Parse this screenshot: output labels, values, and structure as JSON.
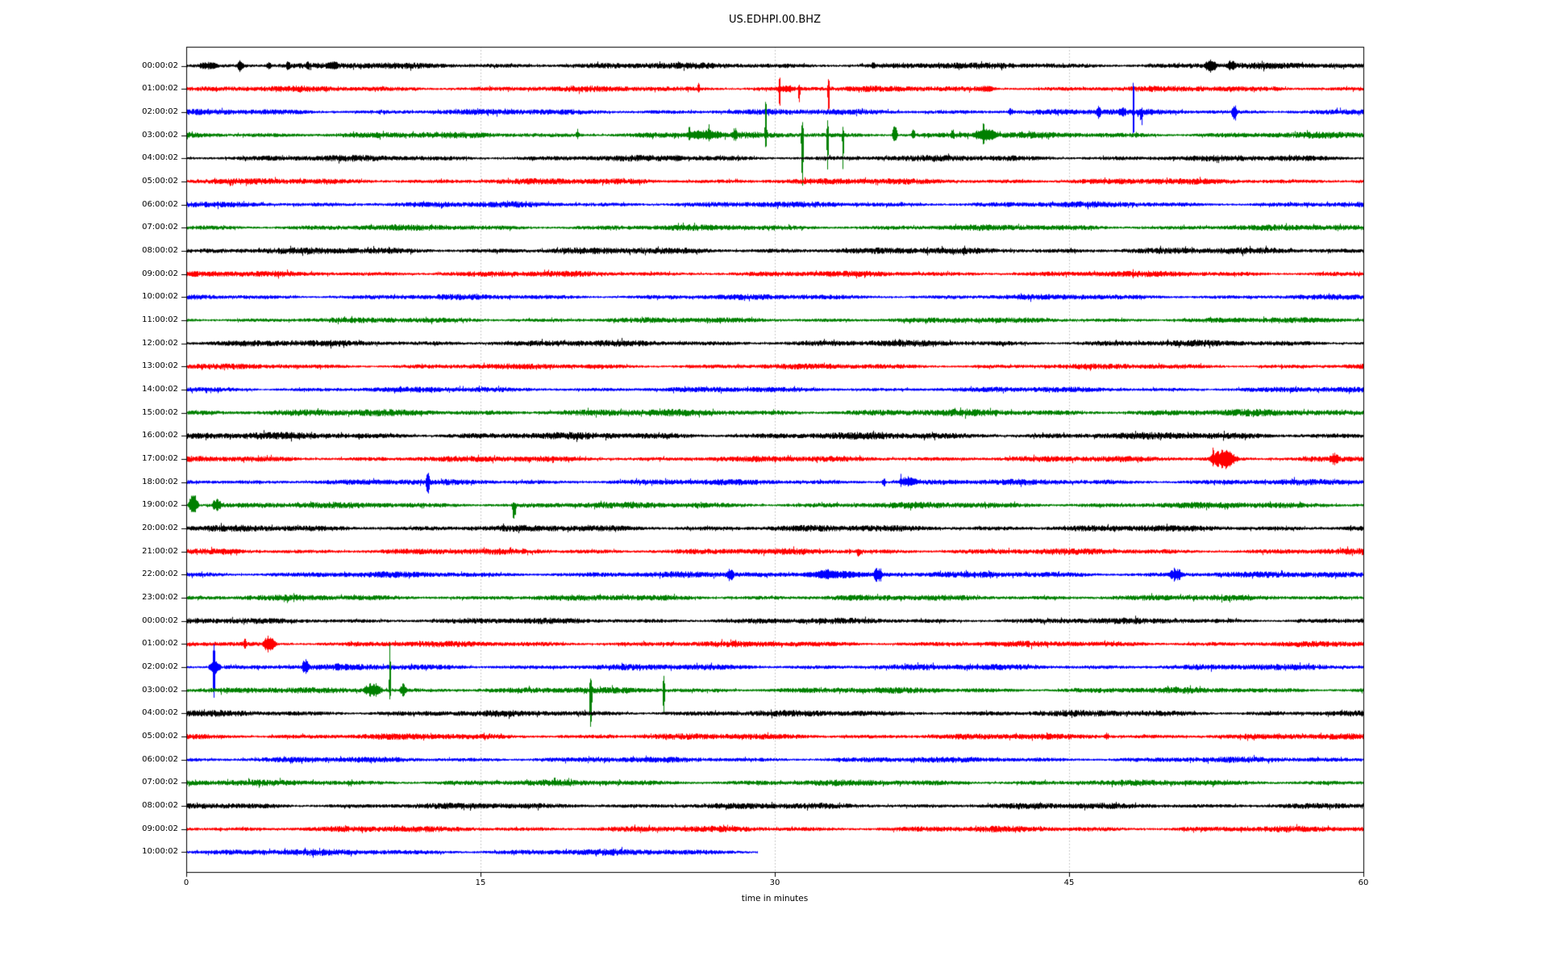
{
  "window": {
    "title": "US.EDHPI.00.BHZ"
  },
  "chart_data": {
    "type": "line",
    "subtype": "helicorder-dayplot",
    "title": "US.EDHPI.00.BHZ",
    "xlabel": "time in minutes",
    "x_ticks": [
      0,
      15,
      30,
      45,
      60
    ],
    "x_range_minutes": [
      0,
      60
    ],
    "grid_x_minutes": [
      15,
      30,
      45
    ],
    "grid_on": true,
    "legend": "none",
    "background_color": "#ffffff",
    "grid_color": "#b0b0b0",
    "axis_color": "#000000",
    "color_cycle": [
      "#000000",
      "#ff0000",
      "#0000ff",
      "#008000"
    ],
    "rows": [
      {
        "label": "00:00:02",
        "amp": 3.4,
        "events": [
          {
            "t": 0.3,
            "dur": 1.6,
            "up": 5,
            "down": 5
          },
          {
            "t": 2.5,
            "dur": 0.5,
            "up": 7,
            "down": 8
          },
          {
            "t": 4.0,
            "dur": 0.4,
            "up": 6,
            "down": 6
          },
          {
            "t": 5.0,
            "dur": 0.35,
            "up": 6,
            "down": 6
          },
          {
            "t": 6.0,
            "dur": 0.35,
            "up": 6,
            "down": 5
          },
          {
            "t": 7.0,
            "dur": 0.9,
            "up": 7,
            "down": 6
          },
          {
            "t": 34.8,
            "dur": 0.4,
            "up": 5,
            "down": 4
          },
          {
            "t": 51.8,
            "dur": 0.8,
            "up": 9,
            "down": 10
          },
          {
            "t": 52.9,
            "dur": 0.7,
            "up": 8,
            "down": 7
          }
        ]
      },
      {
        "label": "01:00:02",
        "amp": 3.2,
        "events": [
          {
            "t": 26.0,
            "dur": 0.2,
            "up": 8,
            "down": 5
          },
          {
            "t": 29.9,
            "dur": 1.4,
            "up": 5,
            "down": 5
          },
          {
            "t": 30.15,
            "dur": 0.15,
            "up": 16,
            "down": 24
          },
          {
            "t": 31.15,
            "dur": 0.15,
            "up": 6,
            "down": 19
          },
          {
            "t": 32.65,
            "dur": 0.15,
            "up": 14,
            "down": 34
          },
          {
            "t": 40.0,
            "dur": 1.5,
            "up": 4,
            "down": 4
          }
        ]
      },
      {
        "label": "02:00:02",
        "amp": 3.2,
        "events": [
          {
            "t": 41.8,
            "dur": 0.4,
            "up": 5,
            "down": 4
          },
          {
            "t": 46.3,
            "dur": 0.4,
            "up": 8,
            "down": 9
          },
          {
            "t": 47.4,
            "dur": 0.6,
            "up": 7,
            "down": 7
          },
          {
            "t": 48.2,
            "dur": 0.13,
            "up": 42,
            "down": 33
          },
          {
            "t": 48.55,
            "dur": 0.25,
            "up": 6,
            "down": 18
          },
          {
            "t": 53.2,
            "dur": 0.4,
            "up": 10,
            "down": 13
          }
        ]
      },
      {
        "label": "03:00:02",
        "amp": 3.4,
        "events": [
          {
            "t": 19.8,
            "dur": 0.25,
            "up": 8,
            "down": 5
          },
          {
            "t": 24.8,
            "dur": 3.2,
            "up": 7,
            "down": 6
          },
          {
            "t": 25.55,
            "dur": 0.15,
            "up": 13,
            "down": 8
          },
          {
            "t": 26.55,
            "dur": 0.15,
            "up": 14,
            "down": 8
          },
          {
            "t": 27.8,
            "dur": 0.3,
            "up": 10,
            "down": 8
          },
          {
            "t": 29.45,
            "dur": 0.15,
            "up": 50,
            "down": 18
          },
          {
            "t": 31.3,
            "dur": 0.18,
            "up": 17,
            "down": 66
          },
          {
            "t": 32.6,
            "dur": 0.15,
            "up": 19,
            "down": 44
          },
          {
            "t": 33.4,
            "dur": 0.12,
            "up": 11,
            "down": 45
          },
          {
            "t": 35.9,
            "dur": 0.4,
            "up": 12,
            "down": 8
          },
          {
            "t": 36.9,
            "dur": 0.3,
            "up": 10,
            "down": 6
          },
          {
            "t": 38.9,
            "dur": 0.3,
            "up": 8,
            "down": 5
          },
          {
            "t": 39.8,
            "dur": 1.8,
            "up": 9,
            "down": 8
          },
          {
            "t": 40.55,
            "dur": 0.15,
            "up": 18,
            "down": 14
          },
          {
            "t": 42.4,
            "dur": 0.3,
            "up": 6,
            "down": 4
          }
        ]
      },
      {
        "label": "04:00:02",
        "amp": 3.3,
        "events": [
          {
            "t": 24.5,
            "dur": 1.0,
            "up": 4,
            "down": 4
          }
        ]
      },
      {
        "label": "05:00:02",
        "amp": 3.3,
        "events": []
      },
      {
        "label": "06:00:02",
        "amp": 3.2,
        "events": []
      },
      {
        "label": "07:00:02",
        "amp": 3.2,
        "events": []
      },
      {
        "label": "08:00:02",
        "amp": 3.6,
        "events": []
      },
      {
        "label": "09:00:02",
        "amp": 3.2,
        "events": []
      },
      {
        "label": "10:00:02",
        "amp": 3.0,
        "events": []
      },
      {
        "label": "11:00:02",
        "amp": 3.0,
        "events": []
      },
      {
        "label": "12:00:02",
        "amp": 3.4,
        "events": []
      },
      {
        "label": "13:00:02",
        "amp": 3.0,
        "events": []
      },
      {
        "label": "14:00:02",
        "amp": 3.0,
        "events": []
      },
      {
        "label": "15:00:02",
        "amp": 3.7,
        "events": []
      },
      {
        "label": "16:00:02",
        "amp": 3.8,
        "events": []
      },
      {
        "label": "17:00:02",
        "amp": 3.3,
        "events": [
          {
            "t": 51.9,
            "dur": 1.9,
            "up": 12,
            "down": 12
          },
          {
            "t": 52.25,
            "dur": 0.15,
            "up": 17,
            "down": 11
          },
          {
            "t": 52.9,
            "dur": 0.12,
            "up": 12,
            "down": 15
          },
          {
            "t": 58.1,
            "dur": 0.8,
            "up": 8,
            "down": 8
          }
        ]
      },
      {
        "label": "18:00:02",
        "amp": 3.2,
        "events": [
          {
            "t": 12.15,
            "dur": 0.3,
            "up": 13,
            "down": 16
          },
          {
            "t": 35.4,
            "dur": 0.3,
            "up": 5,
            "down": 6
          },
          {
            "t": 36.1,
            "dur": 1.4,
            "up": 8,
            "down": 6
          },
          {
            "t": 36.35,
            "dur": 0.12,
            "up": 12,
            "down": 7
          }
        ]
      },
      {
        "label": "19:00:02",
        "amp": 3.4,
        "events": [
          {
            "t": 0.0,
            "dur": 0.7,
            "up": 14,
            "down": 10
          },
          {
            "t": 1.2,
            "dur": 0.7,
            "up": 9,
            "down": 8
          },
          {
            "t": 16.55,
            "dur": 0.3,
            "up": 5,
            "down": 24
          }
        ]
      },
      {
        "label": "20:00:02",
        "amp": 3.5,
        "events": []
      },
      {
        "label": "21:00:02",
        "amp": 3.3,
        "events": [
          {
            "t": 34.1,
            "dur": 0.35,
            "up": 4,
            "down": 8
          }
        ]
      },
      {
        "label": "22:00:02",
        "amp": 3.3,
        "events": [
          {
            "t": 27.4,
            "dur": 0.6,
            "up": 8,
            "down": 9
          },
          {
            "t": 30.2,
            "dur": 5.6,
            "up": 5,
            "down": 5
          },
          {
            "t": 31.8,
            "dur": 1.6,
            "up": 7,
            "down": 6
          },
          {
            "t": 34.9,
            "dur": 0.7,
            "up": 10,
            "down": 11
          },
          {
            "t": 49.9,
            "dur": 1.1,
            "up": 8,
            "down": 8
          },
          {
            "t": 50.3,
            "dur": 0.12,
            "up": 10,
            "down": 10
          }
        ]
      },
      {
        "label": "23:00:02",
        "amp": 3.2,
        "events": []
      },
      {
        "label": "00:00:02",
        "amp": 3.2,
        "events": []
      },
      {
        "label": "01:00:02",
        "amp": 3.2,
        "events": [
          {
            "t": 2.85,
            "dur": 0.25,
            "up": 7,
            "down": 6
          },
          {
            "t": 3.75,
            "dur": 0.95,
            "up": 11,
            "down": 11
          }
        ]
      },
      {
        "label": "02:00:02",
        "amp": 3.3,
        "events": [
          {
            "t": 1.0,
            "dur": 0.9,
            "up": 8,
            "down": 8
          },
          {
            "t": 1.3,
            "dur": 0.2,
            "up": 30,
            "down": 40
          },
          {
            "t": 5.8,
            "dur": 0.55,
            "up": 12,
            "down": 10
          },
          {
            "t": 7.5,
            "dur": 0.4,
            "up": 7,
            "down": 6
          },
          {
            "t": 8.5,
            "dur": 0.4,
            "up": 4,
            "down": 4
          }
        ]
      },
      {
        "label": "03:00:02",
        "amp": 3.3,
        "events": [
          {
            "t": 8.85,
            "dur": 1.3,
            "up": 10,
            "down": 9
          },
          {
            "t": 10.3,
            "dur": 0.13,
            "up": 62,
            "down": 12
          },
          {
            "t": 10.75,
            "dur": 0.6,
            "up": 9,
            "down": 8
          },
          {
            "t": 20.5,
            "dur": 0.2,
            "up": 16,
            "down": 50
          },
          {
            "t": 24.25,
            "dur": 0.15,
            "up": 19,
            "down": 31
          }
        ]
      },
      {
        "label": "04:00:02",
        "amp": 3.4,
        "events": []
      },
      {
        "label": "05:00:02",
        "amp": 3.3,
        "events": [
          {
            "t": 46.7,
            "dur": 0.4,
            "up": 5,
            "down": 4
          }
        ]
      },
      {
        "label": "06:00:02",
        "amp": 3.1,
        "events": []
      },
      {
        "label": "07:00:02",
        "amp": 3.3,
        "events": []
      },
      {
        "label": "08:00:02",
        "amp": 3.3,
        "events": []
      },
      {
        "label": "09:00:02",
        "amp": 3.3,
        "events": []
      },
      {
        "label": "10:00:02",
        "amp": 3.4,
        "end_min": 29.1,
        "events": []
      }
    ]
  }
}
